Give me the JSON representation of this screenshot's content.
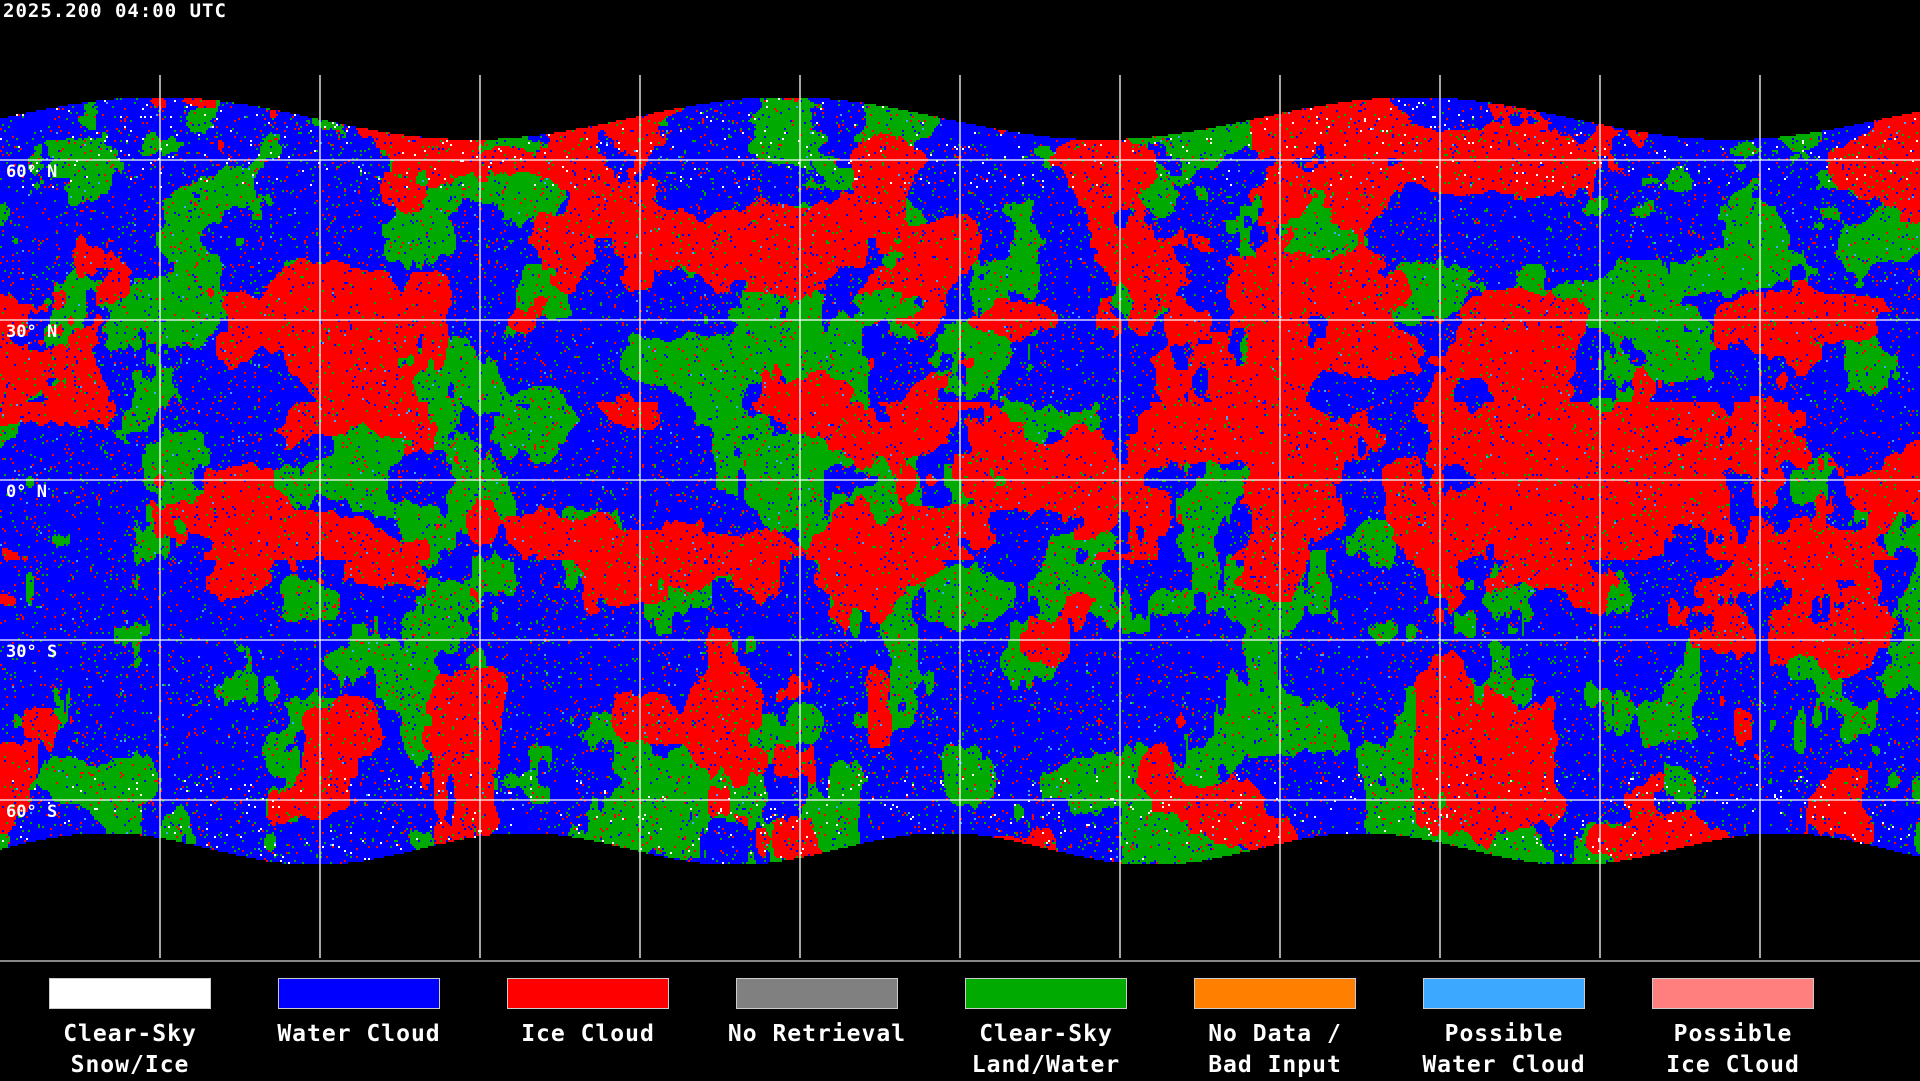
{
  "title": "2025.200 04:00 UTC",
  "latitude_labels": [
    "60° N",
    "30° N",
    "0° N",
    "30° S",
    "60° S"
  ],
  "legend": [
    {
      "line1": "Clear-Sky",
      "line2": "Snow/Ice",
      "color": "#ffffff"
    },
    {
      "line1": "Water Cloud",
      "line2": "",
      "color": "#0000ff"
    },
    {
      "line1": "Ice Cloud",
      "line2": "",
      "color": "#ff0000"
    },
    {
      "line1": "No Retrieval",
      "line2": "",
      "color": "#808080"
    },
    {
      "line1": "Clear-Sky",
      "line2": "Land/Water",
      "color": "#00aa00"
    },
    {
      "line1": "No Data /",
      "line2": "Bad Input",
      "color": "#ff8000"
    },
    {
      "line1": "Possible",
      "line2": "Water Cloud",
      "color": "#3ca8ff"
    },
    {
      "line1": "Possible",
      "line2": "Ice Cloud",
      "color": "#ff7f7f"
    }
  ],
  "background_color": "#000000",
  "gridline_color": "#ffffff"
}
